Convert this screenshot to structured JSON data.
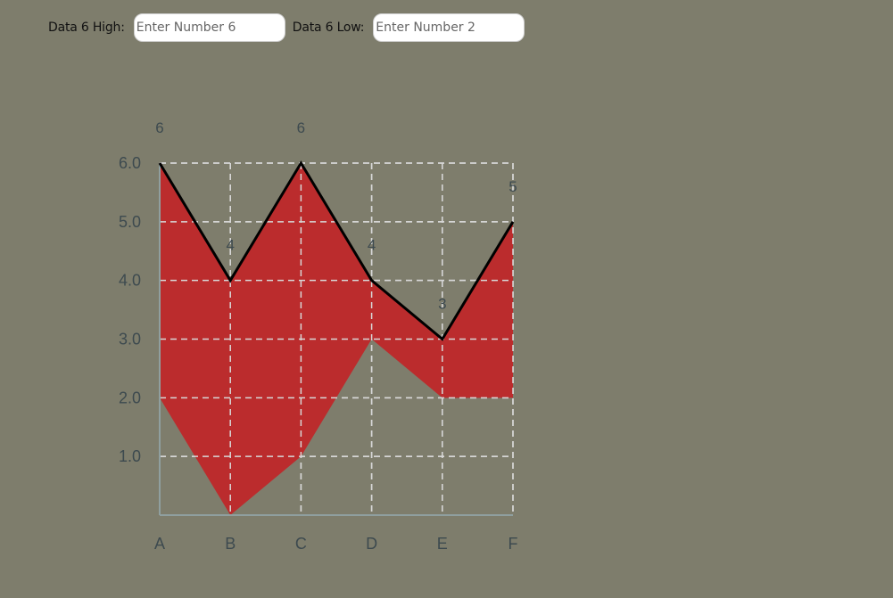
{
  "controls": {
    "high_label": "Data 6 High:",
    "high_placeholder": "Enter Number 6",
    "low_label": "Data 6 Low:",
    "low_placeholder": "Enter Number 2"
  },
  "colors": {
    "band_fill": "#bb2c2d",
    "high_line": "#000000",
    "grid": "#d8d8d8",
    "axis": "#8f9f9f",
    "text": "#3d4a4f",
    "background": "#7e7d6c"
  },
  "chart_data": {
    "type": "area",
    "categories": [
      "A",
      "B",
      "C",
      "D",
      "E",
      "F"
    ],
    "series": [
      {
        "values": [
          6,
          4,
          6,
          4,
          3,
          5
        ]
      },
      {
        "values": [
          2,
          0,
          1,
          3,
          2,
          2
        ]
      }
    ],
    "value_labels": [
      "6",
      "4",
      "6",
      "4",
      "3",
      "5"
    ],
    "yticks": [
      "1.0",
      "2.0",
      "3.0",
      "4.0",
      "5.0",
      "6.0"
    ],
    "ylim": [
      0,
      6
    ],
    "title": "",
    "xlabel": "",
    "ylabel": "",
    "grid": true
  }
}
